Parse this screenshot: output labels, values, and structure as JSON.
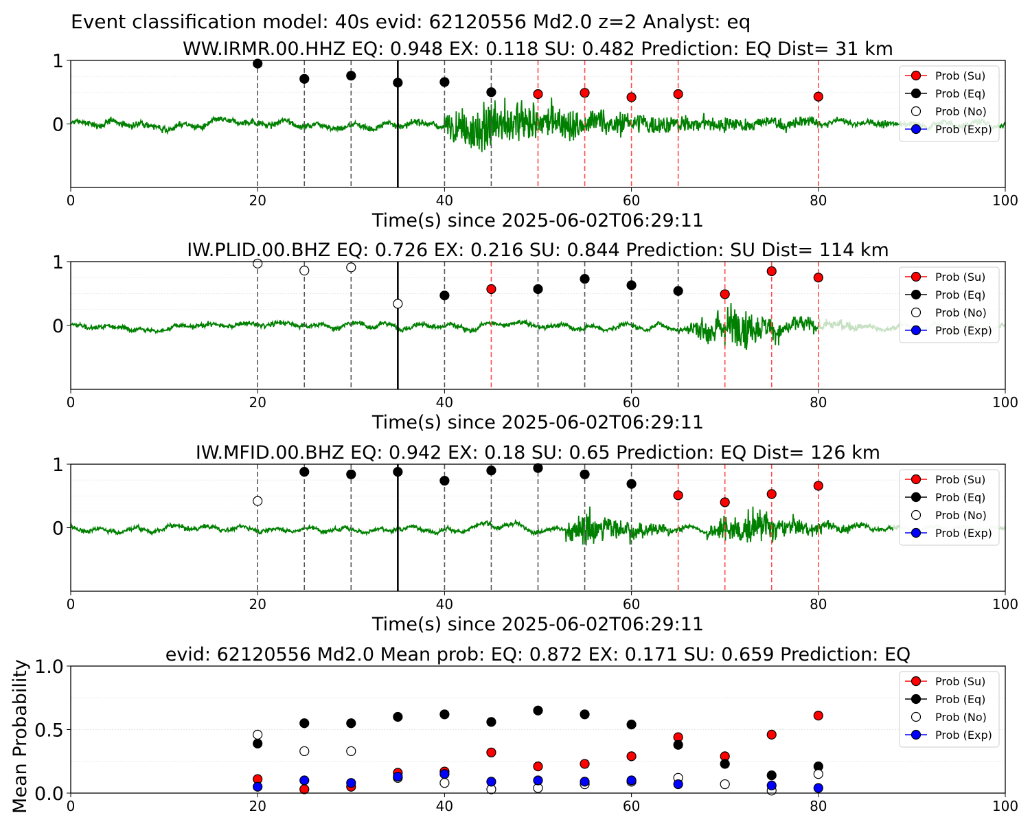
{
  "figure_title": "Event classification model: 40s evid: 62120556 Md2.0 z=2 Analyst: eq",
  "legend": [
    {
      "label": "Prob (Su)",
      "color": "#ff0000"
    },
    {
      "label": "Prob (Eq)",
      "color": "#000000"
    },
    {
      "label": "Prob (No)",
      "color": "#ffffff"
    },
    {
      "label": "Prob (Exp)",
      "color": "#0000ff"
    }
  ],
  "colors": {
    "waveform": "#008000",
    "waveform_faded": "#c6e0c2",
    "su_line": "#ff4a4a",
    "eq_line": "#555555",
    "origin_line": "#000000"
  },
  "chart_data": [
    {
      "type": "line",
      "title": "WW.IRMR.00.HHZ   EQ: 0.948  EX: 0.118  SU: 0.482   Prediction: EQ    Dist= 31 km",
      "xlabel": "Time(s) since 2025-06-02T06:29:11",
      "ylabel": "",
      "xlim": [
        0,
        100
      ],
      "ylim": [
        -1,
        1
      ],
      "xticks": [
        "0",
        "20",
        "40",
        "60",
        "80",
        "100"
      ],
      "yticks": [
        "1",
        "0"
      ],
      "origin_time": 35,
      "waveform": {
        "noise": 0.08,
        "bursts": [
          {
            "start": 40,
            "peak": 44.5,
            "end": 80,
            "amp": 0.65
          }
        ],
        "faded_after": null
      },
      "points": [
        {
          "x": 20,
          "y": 0.95,
          "class": "Eq"
        },
        {
          "x": 25,
          "y": 0.71,
          "class": "Eq"
        },
        {
          "x": 30,
          "y": 0.76,
          "class": "Eq"
        },
        {
          "x": 35,
          "y": 0.65,
          "class": "Eq"
        },
        {
          "x": 40,
          "y": 0.66,
          "class": "Eq"
        },
        {
          "x": 45,
          "y": 0.5,
          "class": "Eq"
        },
        {
          "x": 50,
          "y": 0.47,
          "class": "Su"
        },
        {
          "x": 55,
          "y": 0.49,
          "class": "Su"
        },
        {
          "x": 60,
          "y": 0.42,
          "class": "Su"
        },
        {
          "x": 65,
          "y": 0.47,
          "class": "Su"
        },
        {
          "x": 80,
          "y": 0.43,
          "class": "Su"
        }
      ]
    },
    {
      "type": "line",
      "title": "IW.PLID.00.BHZ   EQ: 0.726  EX: 0.216  SU: 0.844   Prediction: SU    Dist= 114 km",
      "xlabel": "Time(s) since 2025-06-02T06:29:11",
      "ylabel": "",
      "xlim": [
        0,
        100
      ],
      "ylim": [
        -1,
        1
      ],
      "xticks": [
        "0",
        "20",
        "40",
        "60",
        "80",
        "100"
      ],
      "yticks": [
        "1",
        "0"
      ],
      "origin_time": 35,
      "waveform": {
        "noise": 0.06,
        "bursts": [
          {
            "start": 66,
            "peak": 71,
            "end": 85,
            "amp": 0.55
          }
        ],
        "faded_after": 80
      },
      "points": [
        {
          "x": 20,
          "y": 0.97,
          "class": "No"
        },
        {
          "x": 25,
          "y": 0.86,
          "class": "No"
        },
        {
          "x": 30,
          "y": 0.91,
          "class": "No"
        },
        {
          "x": 35,
          "y": 0.34,
          "class": "No"
        },
        {
          "x": 40,
          "y": 0.47,
          "class": "Eq"
        },
        {
          "x": 45,
          "y": 0.57,
          "class": "Su"
        },
        {
          "x": 50,
          "y": 0.57,
          "class": "Eq"
        },
        {
          "x": 55,
          "y": 0.73,
          "class": "Eq"
        },
        {
          "x": 60,
          "y": 0.63,
          "class": "Eq"
        },
        {
          "x": 65,
          "y": 0.54,
          "class": "Eq"
        },
        {
          "x": 70,
          "y": 0.49,
          "class": "Su"
        },
        {
          "x": 75,
          "y": 0.85,
          "class": "Su"
        },
        {
          "x": 80,
          "y": 0.75,
          "class": "Su"
        }
      ]
    },
    {
      "type": "line",
      "title": "IW.MFID.00.BHZ   EQ: 0.942  EX: 0.18  SU: 0.65   Prediction: EQ    Dist= 126 km",
      "xlabel": "Time(s) since 2025-06-02T06:29:11",
      "ylabel": "",
      "xlim": [
        0,
        100
      ],
      "ylim": [
        -1,
        1
      ],
      "xticks": [
        "0",
        "20",
        "40",
        "60",
        "80",
        "100"
      ],
      "yticks": [
        "1",
        "0"
      ],
      "origin_time": 35,
      "waveform": {
        "noise": 0.05,
        "bursts": [
          {
            "start": 53,
            "peak": 56,
            "end": 66,
            "amp": 0.5
          },
          {
            "start": 68,
            "peak": 73,
            "end": 85,
            "amp": 0.45
          }
        ],
        "faded_after": 88
      },
      "points": [
        {
          "x": 20,
          "y": 0.42,
          "class": "No"
        },
        {
          "x": 25,
          "y": 0.88,
          "class": "Eq"
        },
        {
          "x": 30,
          "y": 0.84,
          "class": "Eq"
        },
        {
          "x": 35,
          "y": 0.88,
          "class": "Eq"
        },
        {
          "x": 40,
          "y": 0.74,
          "class": "Eq"
        },
        {
          "x": 45,
          "y": 0.9,
          "class": "Eq"
        },
        {
          "x": 50,
          "y": 0.94,
          "class": "Eq"
        },
        {
          "x": 55,
          "y": 0.84,
          "class": "Eq"
        },
        {
          "x": 60,
          "y": 0.69,
          "class": "Eq"
        },
        {
          "x": 65,
          "y": 0.51,
          "class": "Su"
        },
        {
          "x": 70,
          "y": 0.4,
          "class": "Su"
        },
        {
          "x": 75,
          "y": 0.53,
          "class": "Su"
        },
        {
          "x": 80,
          "y": 0.66,
          "class": "Su"
        }
      ]
    },
    {
      "type": "scatter",
      "title": "evid: 62120556  Md2.0   Mean prob:   EQ: 0.872  EX: 0.171  SU: 0.659   Prediction: EQ",
      "xlabel": "",
      "ylabel": "Mean Probability",
      "xlim": [
        0,
        100
      ],
      "ylim": [
        0,
        1
      ],
      "xticks": [
        "0",
        "20",
        "40",
        "60",
        "80",
        "100"
      ],
      "yticks": [
        "0.0",
        "0.5",
        "1.0"
      ],
      "x": [
        20,
        25,
        30,
        35,
        40,
        45,
        50,
        55,
        60,
        65,
        70,
        75,
        80
      ],
      "series": [
        {
          "name": "Prob (Su)",
          "class": "Su",
          "values": [
            0.11,
            0.03,
            0.05,
            0.16,
            0.17,
            0.32,
            0.21,
            0.23,
            0.29,
            0.44,
            0.29,
            0.46,
            0.61
          ]
        },
        {
          "name": "Prob (Eq)",
          "class": "Eq",
          "values": [
            0.39,
            0.55,
            0.55,
            0.6,
            0.62,
            0.56,
            0.65,
            0.62,
            0.54,
            0.38,
            0.23,
            0.14,
            0.21
          ]
        },
        {
          "name": "Prob (No)",
          "class": "No",
          "values": [
            0.46,
            0.33,
            0.33,
            0.12,
            0.08,
            0.03,
            0.04,
            0.07,
            0.09,
            0.12,
            0.07,
            0.02,
            0.15
          ]
        },
        {
          "name": "Prob (Exp)",
          "class": "Exp",
          "values": [
            0.05,
            0.1,
            0.08,
            0.13,
            0.15,
            0.09,
            0.1,
            0.09,
            0.1,
            0.07,
            null,
            0.06,
            0.04
          ]
        }
      ]
    }
  ]
}
